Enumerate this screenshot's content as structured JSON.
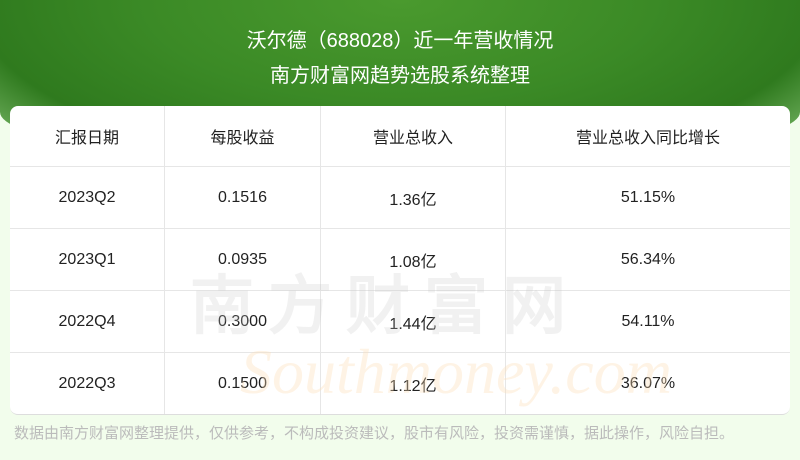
{
  "header": {
    "title": "沃尔德（688028）近一年营收情况",
    "subtitle": "南方财富网趋势选股系统整理"
  },
  "table": {
    "columns": [
      "汇报日期",
      "每股收益",
      "营业总收入",
      "营业总收入同比增长"
    ],
    "rows": [
      [
        "2023Q2",
        "0.1516",
        "1.36亿",
        "51.15%"
      ],
      [
        "2023Q1",
        "0.0935",
        "1.08亿",
        "56.34%"
      ],
      [
        "2022Q4",
        "0.3000",
        "1.44亿",
        "54.11%"
      ],
      [
        "2022Q3",
        "0.1500",
        "1.12亿",
        "36.07%"
      ]
    ]
  },
  "watermark": {
    "cn": "南方财富网",
    "en": "Southmoney.com"
  },
  "footer": "数据由南方财富网整理提供，仅供参考，不构成投资建议，股市有风险，投资需谨慎，据此操作，风险自担。",
  "colors": {
    "banner": "#3b8a26",
    "background": "#f2fdec"
  }
}
